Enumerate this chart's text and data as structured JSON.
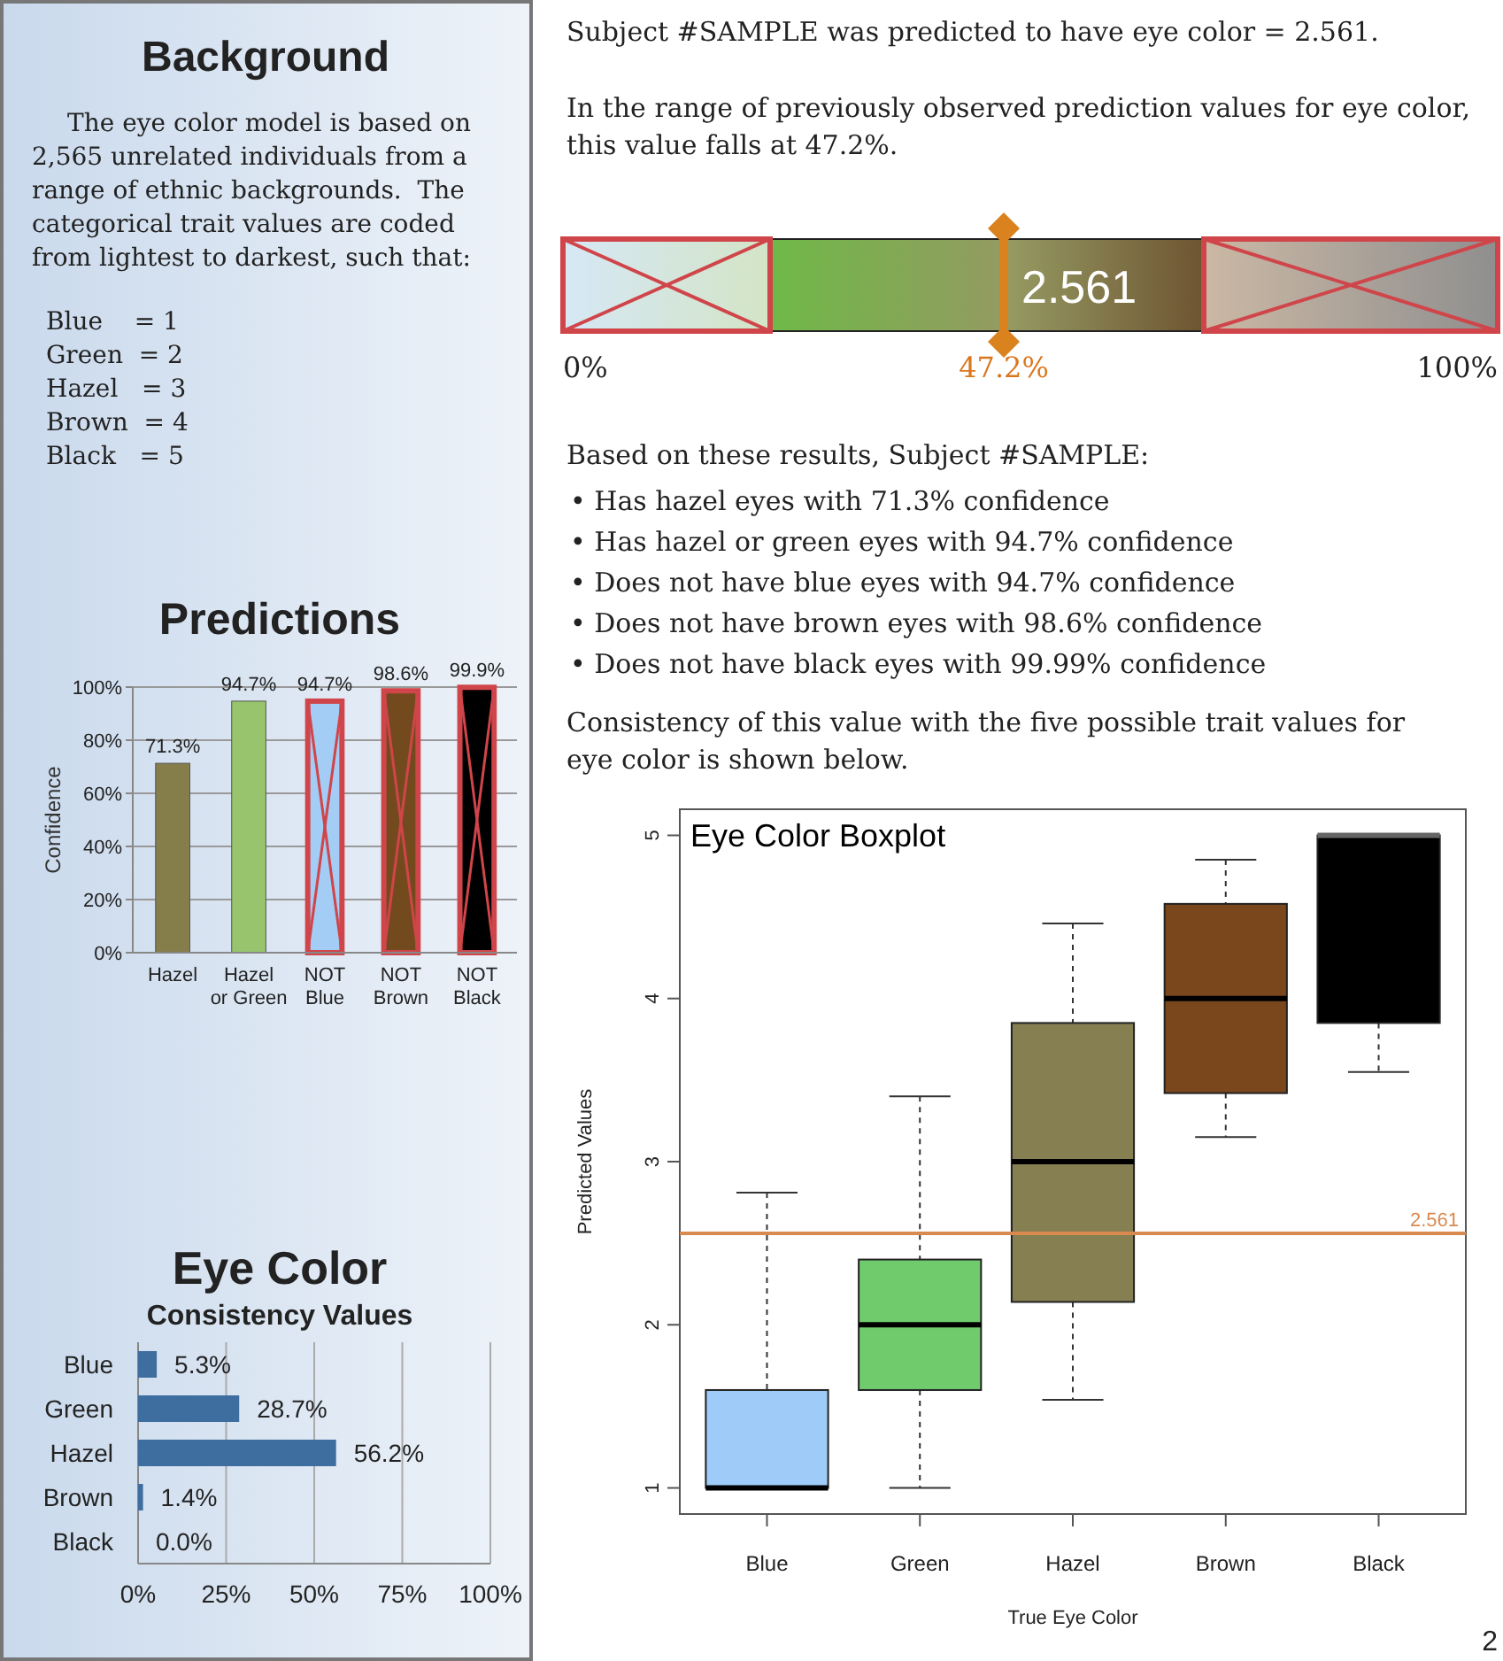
{
  "chart_data": [
    {
      "type": "other",
      "title": "Background",
      "annotations": [
        "The eye color model is based on",
        "2,565 unrelated individuals from a",
        "range of ethnic backgrounds.  The",
        "categorical trait values are coded",
        "from lightest to darkest, such that:",
        "Blue    = 1",
        "Green  = 2",
        "Hazel   = 3",
        "Brown  = 4",
        "Black   = 5"
      ]
    },
    {
      "type": "other",
      "annotations": [
        "Subject #SAMPLE was predicted to have eye color = 2.561.",
        "In the range of previously observed prediction values for eye color,",
        "this value falls at 47.2%."
      ]
    },
    {
      "type": "other",
      "annotations": [
        "2.561",
        "0%",
        "47.2%",
        "100%"
      ]
    },
    {
      "type": "other",
      "annotations": [
        "Based on these results, Subject #SAMPLE:",
        "• Has hazel eyes with 71.3% confidence",
        "• Has hazel or green eyes with 94.7% confidence",
        "• Does not have blue eyes with 94.7% confidence",
        "• Does not have brown eyes with 98.6% confidence",
        "• Does not have black eyes with 99.99% confidence",
        "Consistency of this value with the five possible trait values for",
        "eye color is shown below."
      ]
    },
    {
      "type": "bar",
      "title": "Predictions",
      "ylabel": "Confidence",
      "categories": [
        "Hazel",
        "Hazel or Green",
        "NOT Blue",
        "NOT Brown",
        "NOT Black"
      ],
      "values": [
        71.3,
        94.7,
        94.7,
        98.6,
        99.9
      ],
      "colors": [
        "#857d4a",
        "#97c46c",
        "#a3cdf5",
        "#734a1e",
        "#000000"
      ],
      "value_labels": [
        "71.3%",
        "94.7%",
        "94.7%",
        "98.6%",
        "99.9%"
      ],
      "ylim": [
        0,
        100
      ],
      "yticks": [
        {
          "value": 0,
          "label": "0%"
        },
        {
          "value": 20,
          "label": "20%"
        },
        {
          "value": 40,
          "label": "40%"
        },
        {
          "value": 60,
          "label": "60%"
        },
        {
          "value": 80,
          "label": "80%"
        },
        {
          "value": 100,
          "label": "100%"
        }
      ],
      "grid": "y"
    },
    {
      "type": "bar",
      "orientation": "horizontal",
      "title": "Eye Color",
      "subtitle": "Consistency Values",
      "categories": [
        "Blue",
        "Green",
        "Hazel",
        "Brown",
        "Black"
      ],
      "values": [
        5.3,
        28.7,
        56.2,
        1.4,
        0.0
      ],
      "color": "#3e6d9f",
      "value_labels": [
        "5.3%",
        "28.7%",
        "56.2%",
        "1.4%",
        "0.0%"
      ],
      "xlim": [
        0,
        100
      ],
      "xticks": [
        {
          "value": 0,
          "label": "0%"
        },
        {
          "value": 25,
          "label": "25%"
        },
        {
          "value": 50,
          "label": "50%"
        },
        {
          "value": 75,
          "label": "75%"
        },
        {
          "value": 100,
          "label": "100%"
        }
      ],
      "grid": "x"
    },
    {
      "type": "box",
      "title": "Eye Color Boxplot",
      "xlabel": "True Eye Color",
      "ylabel": "Predicted Values",
      "categories": [
        "Blue",
        "Green",
        "Hazel",
        "Brown",
        "Black"
      ],
      "colors": [
        "#9ecbf7",
        "#70cb6c",
        "#857f52",
        "#7a461c",
        "#000000"
      ],
      "boxes": [
        {
          "low": 1.0,
          "q1": 1.0,
          "median": 1.0,
          "q3": 1.6,
          "high": 2.81
        },
        {
          "low": 1.0,
          "q1": 1.6,
          "median": 2.0,
          "q3": 2.4,
          "high": 3.4
        },
        {
          "low": 1.54,
          "q1": 2.14,
          "median": 3.0,
          "q3": 3.85,
          "high": 4.46
        },
        {
          "low": 3.15,
          "q1": 3.42,
          "median": 4.0,
          "q3": 4.58,
          "high": 4.85
        },
        {
          "low": 3.55,
          "q1": 3.85,
          "median": 5.0,
          "q3": 5.0,
          "high": 5.0
        }
      ],
      "ylim": [
        0.84,
        5.16
      ],
      "yticks": [
        1,
        2,
        3,
        4,
        5
      ],
      "ref_lines": [
        {
          "axis": "y",
          "value": 2.561,
          "label": "2.561",
          "color": "#d98a4f"
        }
      ],
      "annotations": [
        "2"
      ]
    }
  ]
}
